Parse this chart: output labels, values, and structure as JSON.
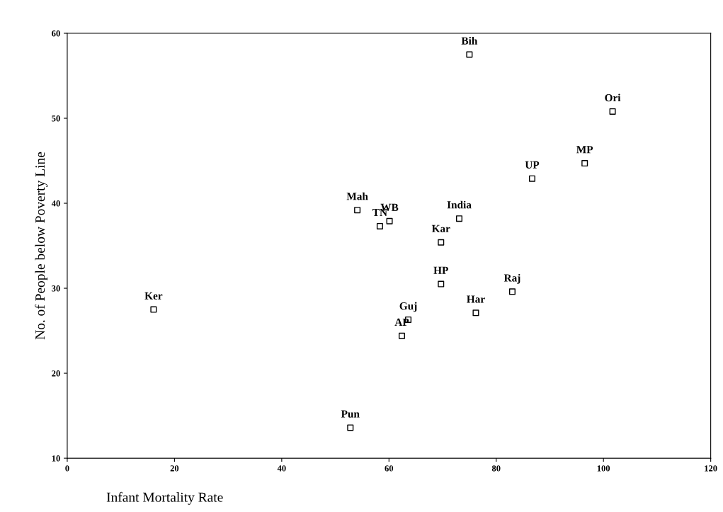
{
  "chart_data": {
    "type": "scatter",
    "xlabel": "Infant Mortality Rate",
    "ylabel": "No. of People below Poverty Line",
    "x": [
      75.0,
      101.7,
      96.5,
      86.7,
      73.1,
      54.1,
      58.3,
      60.1,
      69.7,
      69.7,
      83.0,
      16.1,
      76.2,
      63.6,
      62.4,
      52.8
    ],
    "series": [
      {
        "color": "#000000",
        "values": [
          57.5,
          50.8,
          44.7,
          42.9,
          38.2,
          39.2,
          37.3,
          37.9,
          35.4,
          30.5,
          29.6,
          27.5,
          27.1,
          26.3,
          24.4,
          13.6
        ]
      }
    ],
    "annotations": [
      {
        "text": "Bih",
        "x": 75.0,
        "y": 57.5
      },
      {
        "text": "Ori",
        "x": 101.7,
        "y": 50.8
      },
      {
        "text": "MP",
        "x": 96.5,
        "y": 44.7
      },
      {
        "text": "UP",
        "x": 86.7,
        "y": 42.9
      },
      {
        "text": "India",
        "x": 73.1,
        "y": 38.2
      },
      {
        "text": "Mah",
        "x": 54.1,
        "y": 39.2
      },
      {
        "text": "TN",
        "x": 58.3,
        "y": 37.3
      },
      {
        "text": "WB",
        "x": 60.1,
        "y": 37.9
      },
      {
        "text": "Kar",
        "x": 69.7,
        "y": 35.4
      },
      {
        "text": "HP",
        "x": 69.7,
        "y": 30.5
      },
      {
        "text": "Raj",
        "x": 83.0,
        "y": 29.6
      },
      {
        "text": "Ker",
        "x": 16.1,
        "y": 27.5
      },
      {
        "text": "Har",
        "x": 76.2,
        "y": 27.1
      },
      {
        "text": "Guj",
        "x": 63.6,
        "y": 26.3
      },
      {
        "text": "AP",
        "x": 62.4,
        "y": 24.4
      },
      {
        "text": "Pun",
        "x": 52.8,
        "y": 13.6
      }
    ],
    "xlim": [
      0,
      120
    ],
    "xticks": [
      0,
      20,
      40,
      60,
      80,
      100,
      120
    ],
    "ylim": [
      10,
      60
    ],
    "yticks": [
      10,
      20,
      30,
      40,
      50,
      60
    ],
    "grid": false,
    "legend": false,
    "marker": "square"
  }
}
